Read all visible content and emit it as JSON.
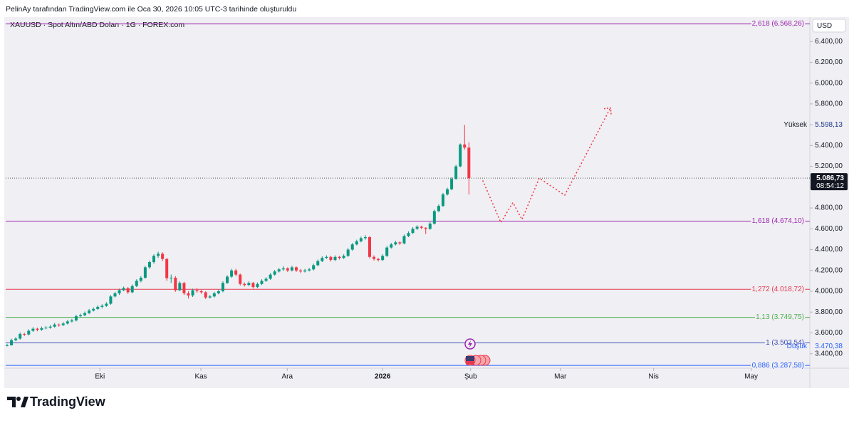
{
  "header": {
    "attribution": "PelinAy tarafından TradingView.com ile Oca 30, 2026 10:05 UTC-3 tarihinde oluşturuldu",
    "symbol": "XAUUSD · Spot Altın/ABD Doları · 1G · FOREX.com"
  },
  "chart_data": {
    "type": "candlestick",
    "up_color": "#089981",
    "down_color": "#f23645",
    "currency": "USD",
    "ohlc": [
      [
        3475,
        3495,
        3470.38,
        3480
      ],
      [
        3480,
        3545,
        3490,
        3530
      ],
      [
        3530,
        3560,
        3520,
        3545
      ],
      [
        3545,
        3605,
        3535,
        3590
      ],
      [
        3590,
        3600,
        3570,
        3585
      ],
      [
        3585,
        3635,
        3575,
        3620
      ],
      [
        3620,
        3655,
        3610,
        3640
      ],
      [
        3640,
        3650,
        3615,
        3630
      ],
      [
        3630,
        3660,
        3620,
        3645
      ],
      [
        3645,
        3665,
        3635,
        3650
      ],
      [
        3650,
        3675,
        3640,
        3660
      ],
      [
        3660,
        3695,
        3650,
        3680
      ],
      [
        3680,
        3690,
        3660,
        3675
      ],
      [
        3675,
        3705,
        3665,
        3690
      ],
      [
        3690,
        3725,
        3680,
        3710
      ],
      [
        3710,
        3735,
        3700,
        3720
      ],
      [
        3720,
        3775,
        3710,
        3760
      ],
      [
        3760,
        3785,
        3750,
        3770
      ],
      [
        3770,
        3805,
        3760,
        3790
      ],
      [
        3790,
        3830,
        3780,
        3815
      ],
      [
        3815,
        3845,
        3805,
        3830
      ],
      [
        3830,
        3865,
        3820,
        3850
      ],
      [
        3850,
        3875,
        3835,
        3860
      ],
      [
        3860,
        3895,
        3850,
        3880
      ],
      [
        3880,
        3965,
        3870,
        3950
      ],
      [
        3950,
        3995,
        3940,
        3980
      ],
      [
        3980,
        4025,
        3965,
        4010
      ],
      [
        4010,
        4045,
        4000,
        4030
      ],
      [
        4030,
        4040,
        3975,
        3990
      ],
      [
        3990,
        4065,
        3980,
        4050
      ],
      [
        4050,
        4115,
        4040,
        4100
      ],
      [
        4100,
        4145,
        4085,
        4130
      ],
      [
        4130,
        4245,
        4120,
        4230
      ],
      [
        4230,
        4295,
        4215,
        4280
      ],
      [
        4280,
        4355,
        4265,
        4340
      ],
      [
        4340,
        4380,
        4320,
        4360
      ],
      [
        4360,
        4375,
        4290,
        4310
      ],
      [
        4310,
        4320,
        4100,
        4125
      ],
      [
        4125,
        4160,
        4080,
        4130
      ],
      [
        4130,
        4145,
        3995,
        4010
      ],
      [
        4010,
        4095,
        4000,
        4080
      ],
      [
        4080,
        4090,
        3965,
        3980
      ],
      [
        3980,
        4000,
        3930,
        3960
      ],
      [
        3960,
        4025,
        3945,
        4010
      ],
      [
        4010,
        4030,
        3985,
        4000
      ],
      [
        4000,
        4015,
        3975,
        3990
      ],
      [
        3990,
        4000,
        3925,
        3940
      ],
      [
        3940,
        3965,
        3930,
        3950
      ],
      [
        3950,
        3995,
        3940,
        3980
      ],
      [
        3980,
        4015,
        3970,
        4000
      ],
      [
        4000,
        4095,
        3990,
        4080
      ],
      [
        4080,
        4155,
        4070,
        4140
      ],
      [
        4140,
        4215,
        4130,
        4200
      ],
      [
        4200,
        4215,
        4145,
        4160
      ],
      [
        4160,
        4170,
        4055,
        4070
      ],
      [
        4070,
        4085,
        4045,
        4060
      ],
      [
        4060,
        4095,
        4050,
        4080
      ],
      [
        4080,
        4090,
        4025,
        4040
      ],
      [
        4040,
        4085,
        4030,
        4070
      ],
      [
        4070,
        4115,
        4060,
        4100
      ],
      [
        4100,
        4135,
        4090,
        4120
      ],
      [
        4120,
        4175,
        4110,
        4160
      ],
      [
        4160,
        4205,
        4150,
        4190
      ],
      [
        4190,
        4225,
        4180,
        4210
      ],
      [
        4210,
        4240,
        4195,
        4220
      ],
      [
        4220,
        4230,
        4185,
        4200
      ],
      [
        4200,
        4245,
        4190,
        4230
      ],
      [
        4230,
        4240,
        4185,
        4200
      ],
      [
        4200,
        4215,
        4175,
        4190
      ],
      [
        4190,
        4215,
        4180,
        4200
      ],
      [
        4200,
        4225,
        4190,
        4210
      ],
      [
        4210,
        4265,
        4200,
        4250
      ],
      [
        4250,
        4305,
        4240,
        4290
      ],
      [
        4290,
        4335,
        4280,
        4320
      ],
      [
        4320,
        4345,
        4310,
        4330
      ],
      [
        4330,
        4340,
        4285,
        4300
      ],
      [
        4300,
        4345,
        4290,
        4330
      ],
      [
        4330,
        4340,
        4305,
        4320
      ],
      [
        4320,
        4355,
        4310,
        4340
      ],
      [
        4340,
        4415,
        4330,
        4400
      ],
      [
        4400,
        4465,
        4390,
        4450
      ],
      [
        4450,
        4495,
        4440,
        4480
      ],
      [
        4480,
        4525,
        4470,
        4510
      ],
      [
        4510,
        4540,
        4495,
        4520
      ],
      [
        4520,
        4530,
        4315,
        4330
      ],
      [
        4330,
        4345,
        4295,
        4310
      ],
      [
        4310,
        4320,
        4285,
        4300
      ],
      [
        4300,
        4355,
        4290,
        4340
      ],
      [
        4340,
        4435,
        4330,
        4420
      ],
      [
        4420,
        4465,
        4410,
        4450
      ],
      [
        4450,
        4485,
        4440,
        4470
      ],
      [
        4470,
        4480,
        4445,
        4460
      ],
      [
        4460,
        4545,
        4450,
        4530
      ],
      [
        4530,
        4575,
        4520,
        4560
      ],
      [
        4560,
        4615,
        4550,
        4600
      ],
      [
        4600,
        4635,
        4590,
        4620
      ],
      [
        4620,
        4630,
        4595,
        4610
      ],
      [
        4610,
        4615,
        4550,
        4600
      ],
      [
        4600,
        4665,
        4590,
        4650
      ],
      [
        4650,
        4785,
        4640,
        4770
      ],
      [
        4770,
        4835,
        4760,
        4820
      ],
      [
        4820,
        4945,
        4810,
        4930
      ],
      [
        4930,
        4995,
        4920,
        4980
      ],
      [
        4980,
        5095,
        4970,
        5080
      ],
      [
        5080,
        5215,
        5070,
        5200
      ],
      [
        5200,
        5420,
        5190,
        5410
      ],
      [
        5410,
        5598.13,
        5360,
        5380
      ],
      [
        5380,
        5430,
        4930,
        5086.73
      ]
    ],
    "xlim": [
      -0.33,
      186
    ],
    "xticks": [
      {
        "value": 21.5,
        "label": "Eki"
      },
      {
        "value": 44.9,
        "label": "Kas"
      },
      {
        "value": 64.9,
        "label": "Ara"
      },
      {
        "value": 87,
        "label": "2026"
      },
      {
        "value": 107.4,
        "label": "Şub"
      },
      {
        "value": 128.2,
        "label": "Mar"
      },
      {
        "value": 149.8,
        "label": "Nis"
      },
      {
        "value": 172.4,
        "label": "May"
      }
    ],
    "ylim": [
      3261,
      6634
    ],
    "yticks": [
      {
        "value": 3400,
        "label": "3.400,00"
      },
      {
        "value": 3600,
        "label": "3.600,00"
      },
      {
        "value": 3800,
        "label": "3.800,00"
      },
      {
        "value": 4000,
        "label": "4.000,00"
      },
      {
        "value": 4200,
        "label": "4.200,00"
      },
      {
        "value": 4400,
        "label": "4.400,00"
      },
      {
        "value": 4600,
        "label": "4.600,00"
      },
      {
        "value": 4800,
        "label": "4.800,00"
      },
      {
        "value": 5000,
        "label": "5.000,00"
      },
      {
        "value": 5200,
        "label": "5.200,00"
      },
      {
        "value": 5400,
        "label": "5.400,00"
      },
      {
        "value": 5600,
        "label": "5.600,00"
      },
      {
        "value": 5800,
        "label": "5.800,00"
      },
      {
        "value": 6000,
        "label": "6.000,00"
      },
      {
        "value": 6200,
        "label": "6.200,00"
      },
      {
        "value": 6400,
        "label": "6.400,00"
      }
    ],
    "levels": [
      {
        "value": 6568.26,
        "label": "2,618 (6.568,26)",
        "color": "#9c27b0"
      },
      {
        "value": 4674.1,
        "label": "1,618 (4.674,10)",
        "color": "#9c27b0"
      },
      {
        "value": 4018.72,
        "label": "1,272 (4.018,72)",
        "color": "#e53950"
      },
      {
        "value": 3749.75,
        "label": "1,13 (3.749,75)",
        "color": "#4caf50"
      },
      {
        "value": 3503.54,
        "label": "1 (3.503,54)",
        "color": "#3f51b5"
      },
      {
        "value": 3287.58,
        "label": "0,886 (3.287,58)",
        "color": "#2962ff"
      }
    ],
    "projection": {
      "color": "#f23645",
      "x": [
        110.2,
        114.4,
        117.2,
        119.3,
        123.3,
        129.2,
        139.8
      ],
      "y": [
        5065,
        4660,
        4852,
        4689,
        5087,
        4923,
        5761
      ]
    },
    "last_price": {
      "value": 5086.73,
      "value_label": "5.086,73",
      "countdown": "08:54:12"
    },
    "high": {
      "label": "Yüksek",
      "value": 5598.13,
      "value_label": "5.598,13"
    },
    "low": {
      "label": "Düşük",
      "value": 3470.38,
      "value_label": "3.470,38"
    }
  },
  "brand": "TradingView"
}
